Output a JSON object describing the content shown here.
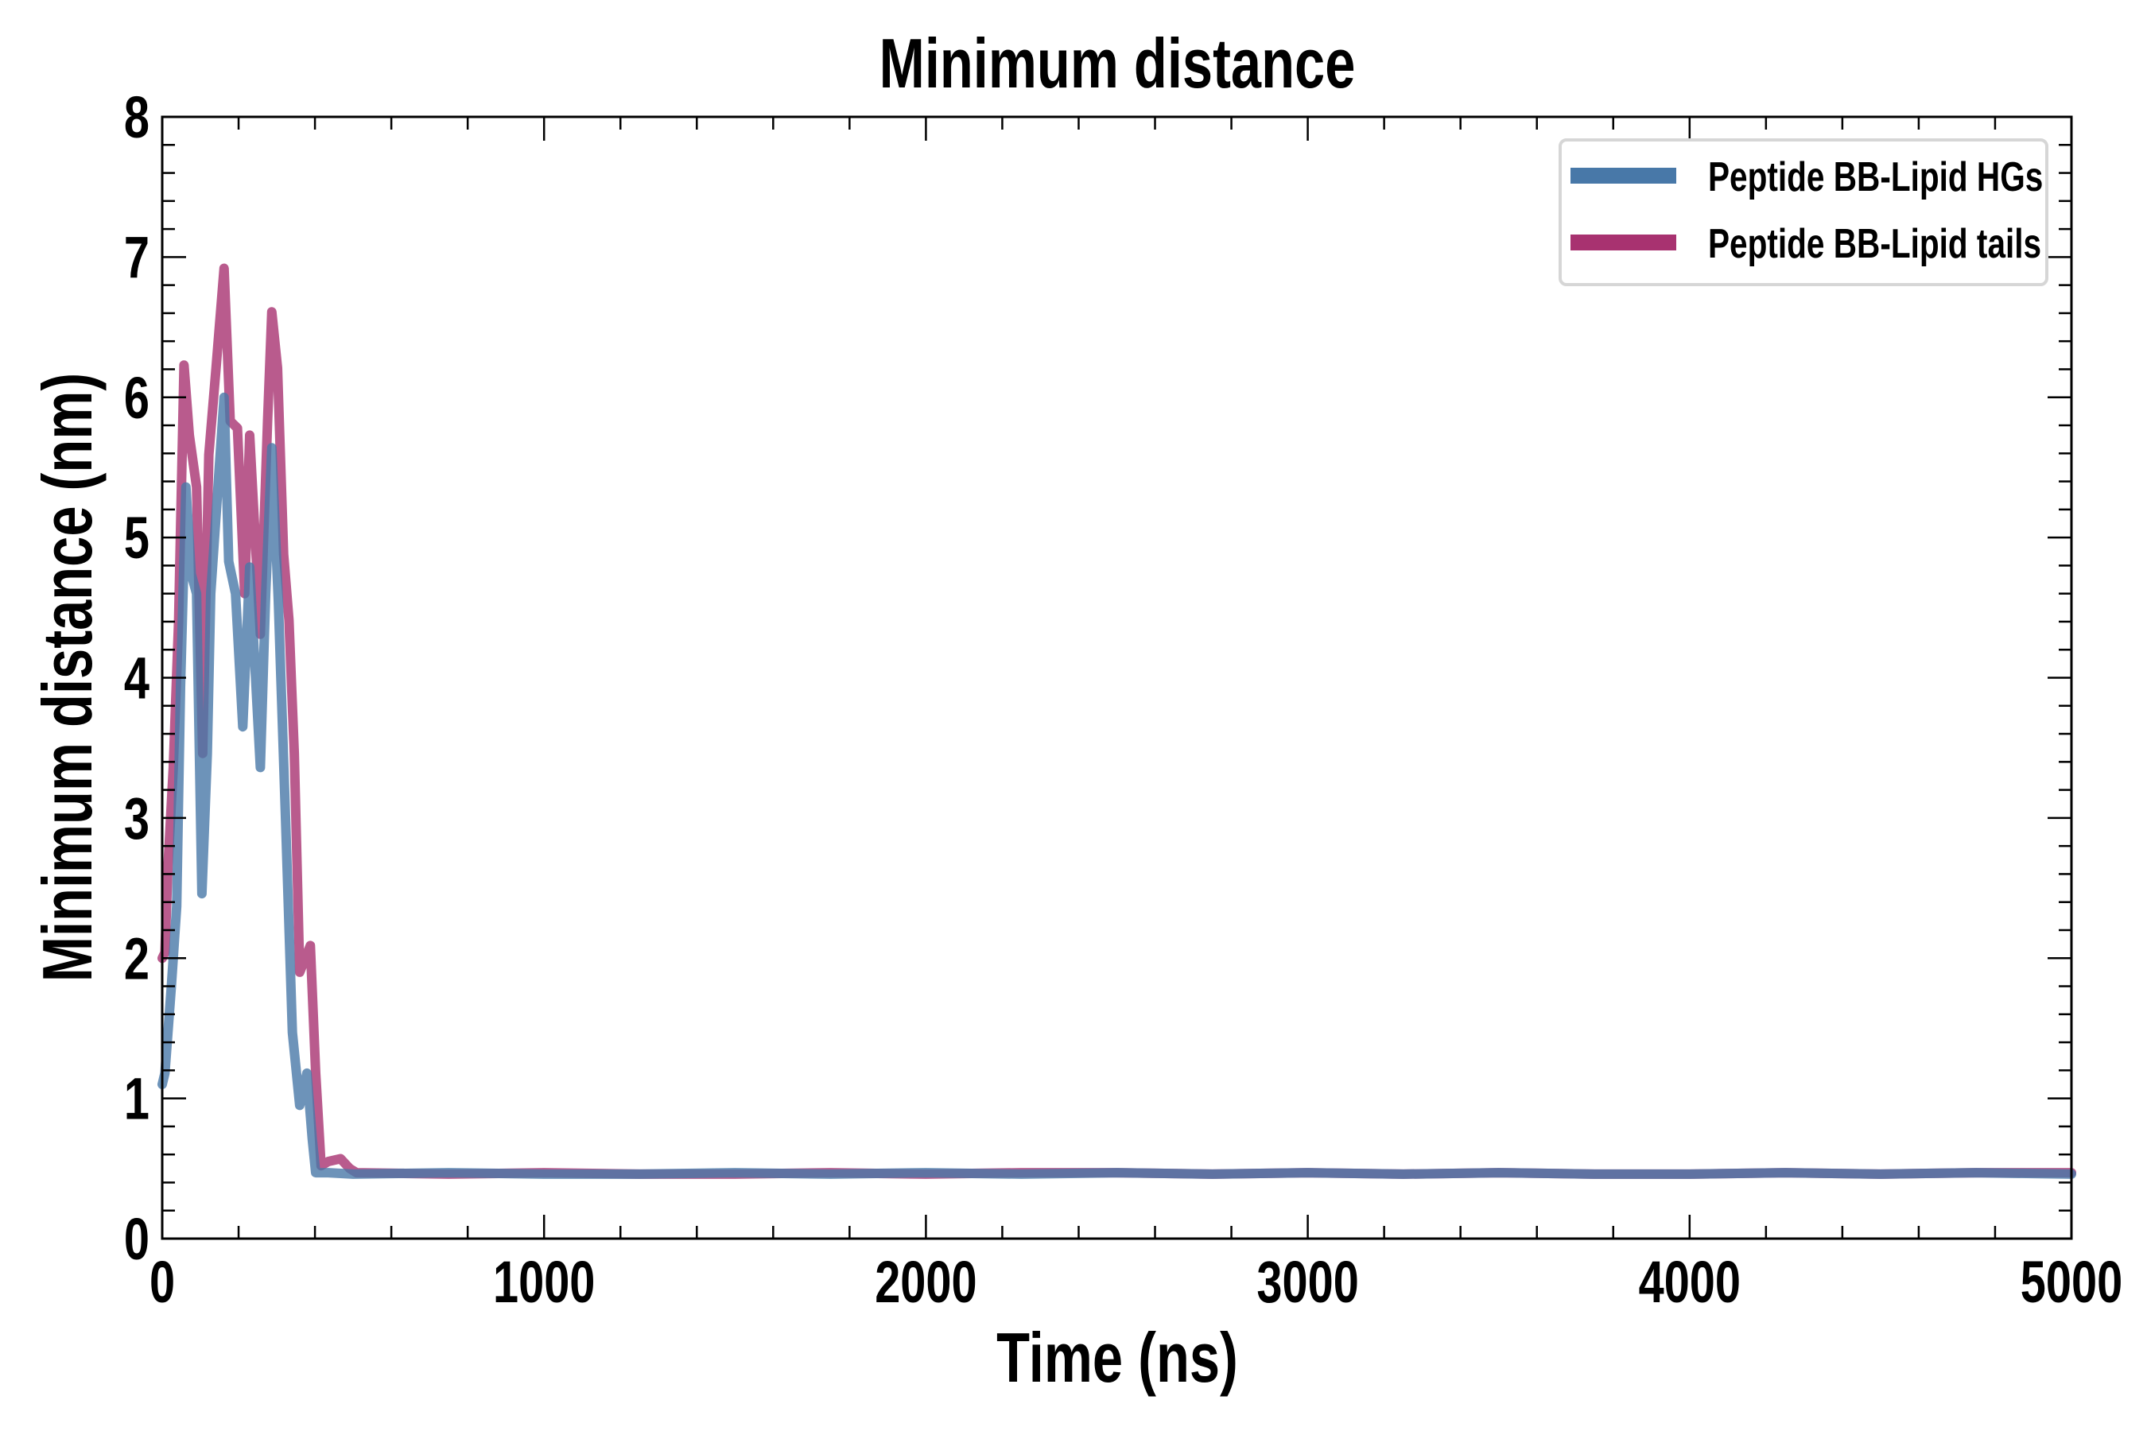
{
  "chart_data": {
    "type": "line",
    "title": "Minimum distance",
    "xlabel": "Time (ns)",
    "ylabel": "Minimum distance (nm)",
    "xlim": [
      0,
      5000
    ],
    "ylim": [
      0,
      8
    ],
    "xticks": [
      "0",
      "1000",
      "2000",
      "3000",
      "4000",
      "5000"
    ],
    "yticks": [
      "0",
      "1",
      "2",
      "3",
      "4",
      "5",
      "6",
      "7",
      "8"
    ],
    "grid": false,
    "legend_position": "top-right",
    "series": [
      {
        "name": "Peptide BB-Lipid HGs",
        "color": "#4878a8",
        "x": [
          0,
          7,
          24,
          38,
          48,
          62,
          76,
          90,
          104,
          118,
          127,
          146,
          162,
          174,
          192,
          211,
          229,
          257,
          271,
          287,
          304,
          323,
          341,
          360,
          379,
          393,
          402,
          435,
          500,
          750,
          1000,
          1250,
          1500,
          1750,
          2000,
          2250,
          2500,
          2750,
          3000,
          3250,
          3500,
          3750,
          4000,
          4250,
          4500,
          4750,
          5000
        ],
        "y": [
          1.1,
          1.18,
          1.8,
          2.37,
          3.93,
          5.36,
          4.74,
          4.6,
          2.46,
          3.46,
          4.6,
          5.36,
          6.0,
          4.83,
          4.6,
          3.65,
          4.79,
          3.36,
          4.6,
          5.64,
          4.55,
          2.99,
          1.47,
          0.95,
          1.18,
          0.71,
          0.47,
          0.47,
          0.46,
          0.47,
          0.46,
          0.46,
          0.47,
          0.46,
          0.47,
          0.46,
          0.47,
          0.46,
          0.47,
          0.46,
          0.47,
          0.46,
          0.46,
          0.47,
          0.46,
          0.47,
          0.46
        ]
      },
      {
        "name": "Peptide BB-Lipid tails",
        "color": "#a83270",
        "x": [
          0,
          7,
          15,
          29,
          43,
          57,
          71,
          90,
          106,
          122,
          141,
          162,
          178,
          197,
          216,
          229,
          257,
          276,
          287,
          302,
          318,
          332,
          346,
          360,
          388,
          402,
          416,
          435,
          467,
          491,
          509,
          750,
          1000,
          1250,
          1500,
          1750,
          2000,
          2250,
          2500,
          2750,
          3000,
          3250,
          3500,
          3750,
          4000,
          4250,
          4500,
          4750,
          5000
        ],
        "y": [
          2.0,
          2.04,
          2.65,
          3.36,
          4.4,
          6.23,
          5.73,
          5.36,
          3.46,
          5.59,
          6.21,
          6.92,
          5.83,
          5.78,
          4.6,
          5.73,
          4.31,
          5.83,
          6.61,
          6.21,
          4.88,
          4.41,
          3.46,
          1.9,
          2.09,
          1.18,
          0.52,
          0.55,
          0.57,
          0.5,
          0.47,
          0.46,
          0.47,
          0.46,
          0.46,
          0.47,
          0.46,
          0.47,
          0.47,
          0.46,
          0.47,
          0.46,
          0.47,
          0.46,
          0.46,
          0.47,
          0.46,
          0.47,
          0.47
        ]
      }
    ]
  }
}
